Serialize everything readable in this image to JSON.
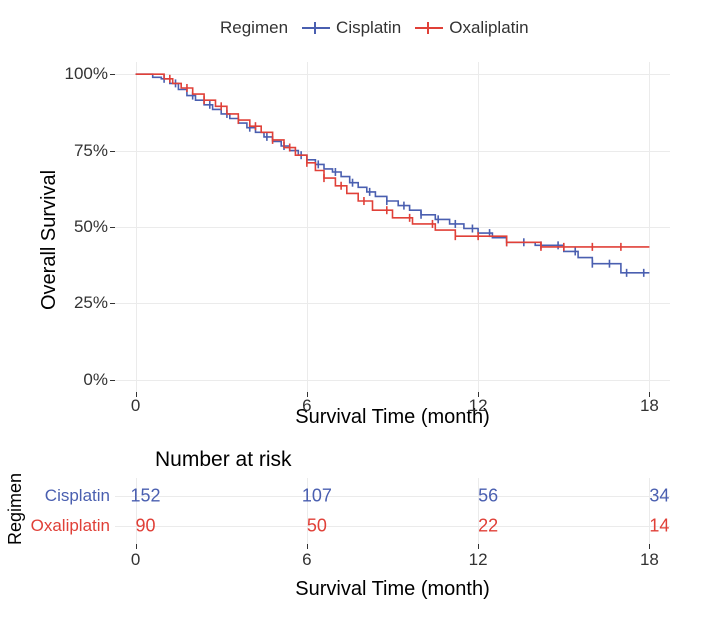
{
  "legend": {
    "title": "Regimen",
    "items": [
      {
        "label": "Cisplatin",
        "color": "#4a5fb0"
      },
      {
        "label": "Oxaliplatin",
        "color": "#e04038"
      }
    ]
  },
  "plot": {
    "y_label": "Overall Survival",
    "x_label": "Survival Time (month)",
    "xlim": [
      0,
      18
    ],
    "ylim": [
      0,
      1
    ],
    "x_ticks": [
      0,
      6,
      12,
      18
    ],
    "y_ticks": [
      {
        "v": 0.0,
        "label": "0%"
      },
      {
        "v": 0.25,
        "label": "25%"
      },
      {
        "v": 0.5,
        "label": "50%"
      },
      {
        "v": 0.75,
        "label": "75%"
      },
      {
        "v": 1.0,
        "label": "100%"
      }
    ],
    "grid_color": "#ebebeb",
    "background": "#ffffff",
    "line_width": 1.6,
    "censor_tick_height": 8,
    "series": [
      {
        "name": "Cisplatin",
        "color": "#4a5fb0",
        "steps": [
          [
            0,
            1.0
          ],
          [
            0.6,
            1.0
          ],
          [
            0.6,
            0.99
          ],
          [
            0.9,
            0.99
          ],
          [
            0.9,
            0.985
          ],
          [
            1.2,
            0.985
          ],
          [
            1.2,
            0.97
          ],
          [
            1.5,
            0.97
          ],
          [
            1.5,
            0.95
          ],
          [
            1.8,
            0.95
          ],
          [
            1.8,
            0.93
          ],
          [
            2.1,
            0.93
          ],
          [
            2.1,
            0.915
          ],
          [
            2.4,
            0.915
          ],
          [
            2.4,
            0.9
          ],
          [
            2.7,
            0.9
          ],
          [
            2.7,
            0.885
          ],
          [
            3.0,
            0.885
          ],
          [
            3.0,
            0.87
          ],
          [
            3.3,
            0.87
          ],
          [
            3.3,
            0.855
          ],
          [
            3.6,
            0.855
          ],
          [
            3.6,
            0.84
          ],
          [
            3.9,
            0.84
          ],
          [
            3.9,
            0.825
          ],
          [
            4.2,
            0.825
          ],
          [
            4.2,
            0.81
          ],
          [
            4.5,
            0.81
          ],
          [
            4.5,
            0.795
          ],
          [
            4.8,
            0.795
          ],
          [
            4.8,
            0.78
          ],
          [
            5.1,
            0.78
          ],
          [
            5.1,
            0.765
          ],
          [
            5.4,
            0.765
          ],
          [
            5.4,
            0.75
          ],
          [
            5.7,
            0.75
          ],
          [
            5.7,
            0.735
          ],
          [
            6.0,
            0.735
          ],
          [
            6.0,
            0.72
          ],
          [
            6.3,
            0.72
          ],
          [
            6.3,
            0.705
          ],
          [
            6.6,
            0.705
          ],
          [
            6.6,
            0.69
          ],
          [
            6.9,
            0.69
          ],
          [
            6.9,
            0.68
          ],
          [
            7.2,
            0.68
          ],
          [
            7.2,
            0.665
          ],
          [
            7.5,
            0.665
          ],
          [
            7.5,
            0.645
          ],
          [
            7.8,
            0.645
          ],
          [
            7.8,
            0.63
          ],
          [
            8.1,
            0.63
          ],
          [
            8.1,
            0.615
          ],
          [
            8.4,
            0.615
          ],
          [
            8.4,
            0.6
          ],
          [
            8.8,
            0.6
          ],
          [
            8.8,
            0.585
          ],
          [
            9.2,
            0.585
          ],
          [
            9.2,
            0.57
          ],
          [
            9.6,
            0.57
          ],
          [
            9.6,
            0.555
          ],
          [
            10.0,
            0.555
          ],
          [
            10.0,
            0.54
          ],
          [
            10.5,
            0.54
          ],
          [
            10.5,
            0.525
          ],
          [
            11.0,
            0.525
          ],
          [
            11.0,
            0.51
          ],
          [
            11.5,
            0.51
          ],
          [
            11.5,
            0.495
          ],
          [
            12.0,
            0.495
          ],
          [
            12.0,
            0.48
          ],
          [
            12.5,
            0.48
          ],
          [
            12.5,
            0.465
          ],
          [
            13.0,
            0.465
          ],
          [
            13.0,
            0.45
          ],
          [
            14.0,
            0.45
          ],
          [
            14.0,
            0.44
          ],
          [
            15.0,
            0.44
          ],
          [
            15.0,
            0.42
          ],
          [
            15.5,
            0.42
          ],
          [
            15.5,
            0.4
          ],
          [
            16.0,
            0.4
          ],
          [
            16.0,
            0.38
          ],
          [
            17.0,
            0.38
          ],
          [
            17.0,
            0.35
          ],
          [
            18.0,
            0.35
          ]
        ],
        "censor_x": [
          1.0,
          1.4,
          2.0,
          2.6,
          3.2,
          4.0,
          4.6,
          5.2,
          5.8,
          6.4,
          7.0,
          7.6,
          8.2,
          8.8,
          9.4,
          10.0,
          10.6,
          11.2,
          11.8,
          12.4,
          13.0,
          13.6,
          14.2,
          14.8,
          15.4,
          16.0,
          16.6,
          17.2,
          17.8
        ]
      },
      {
        "name": "Oxaliplatin",
        "color": "#e04038",
        "steps": [
          [
            0,
            1.0
          ],
          [
            1.0,
            1.0
          ],
          [
            1.0,
            0.985
          ],
          [
            1.3,
            0.985
          ],
          [
            1.3,
            0.97
          ],
          [
            1.6,
            0.97
          ],
          [
            1.6,
            0.955
          ],
          [
            2.0,
            0.955
          ],
          [
            2.0,
            0.935
          ],
          [
            2.4,
            0.935
          ],
          [
            2.4,
            0.915
          ],
          [
            2.8,
            0.915
          ],
          [
            2.8,
            0.895
          ],
          [
            3.2,
            0.895
          ],
          [
            3.2,
            0.87
          ],
          [
            3.6,
            0.87
          ],
          [
            3.6,
            0.85
          ],
          [
            4.0,
            0.85
          ],
          [
            4.0,
            0.83
          ],
          [
            4.4,
            0.83
          ],
          [
            4.4,
            0.81
          ],
          [
            4.8,
            0.81
          ],
          [
            4.8,
            0.785
          ],
          [
            5.2,
            0.785
          ],
          [
            5.2,
            0.76
          ],
          [
            5.6,
            0.76
          ],
          [
            5.6,
            0.735
          ],
          [
            6.0,
            0.735
          ],
          [
            6.0,
            0.71
          ],
          [
            6.3,
            0.71
          ],
          [
            6.3,
            0.685
          ],
          [
            6.6,
            0.685
          ],
          [
            6.6,
            0.66
          ],
          [
            7.0,
            0.66
          ],
          [
            7.0,
            0.635
          ],
          [
            7.4,
            0.635
          ],
          [
            7.4,
            0.61
          ],
          [
            7.8,
            0.61
          ],
          [
            7.8,
            0.585
          ],
          [
            8.3,
            0.585
          ],
          [
            8.3,
            0.555
          ],
          [
            9.0,
            0.555
          ],
          [
            9.0,
            0.53
          ],
          [
            9.7,
            0.53
          ],
          [
            9.7,
            0.51
          ],
          [
            10.5,
            0.51
          ],
          [
            10.5,
            0.49
          ],
          [
            11.2,
            0.49
          ],
          [
            11.2,
            0.47
          ],
          [
            12.0,
            0.47
          ],
          [
            13.0,
            0.47
          ],
          [
            13.0,
            0.45
          ],
          [
            14.2,
            0.45
          ],
          [
            14.2,
            0.435
          ],
          [
            18.0,
            0.435
          ]
        ],
        "censor_x": [
          1.2,
          1.8,
          2.4,
          3.0,
          3.6,
          4.2,
          4.8,
          5.4,
          6.0,
          6.6,
          7.2,
          8.0,
          8.8,
          9.6,
          10.4,
          11.2,
          12.0,
          13.0,
          14.2,
          15.0,
          16.0,
          17.0
        ]
      }
    ]
  },
  "risk_table": {
    "title": "Number at risk",
    "y_label": "Regimen",
    "x_label": "Survival Time (month)",
    "x_ticks": [
      0,
      6,
      12,
      18
    ],
    "rows": [
      {
        "label": "Cisplatin",
        "color": "#4a5fb0",
        "values": [
          152,
          107,
          56,
          34
        ]
      },
      {
        "label": "Oxaliplatin",
        "color": "#e04038",
        "values": [
          90,
          50,
          22,
          14
        ]
      }
    ]
  }
}
